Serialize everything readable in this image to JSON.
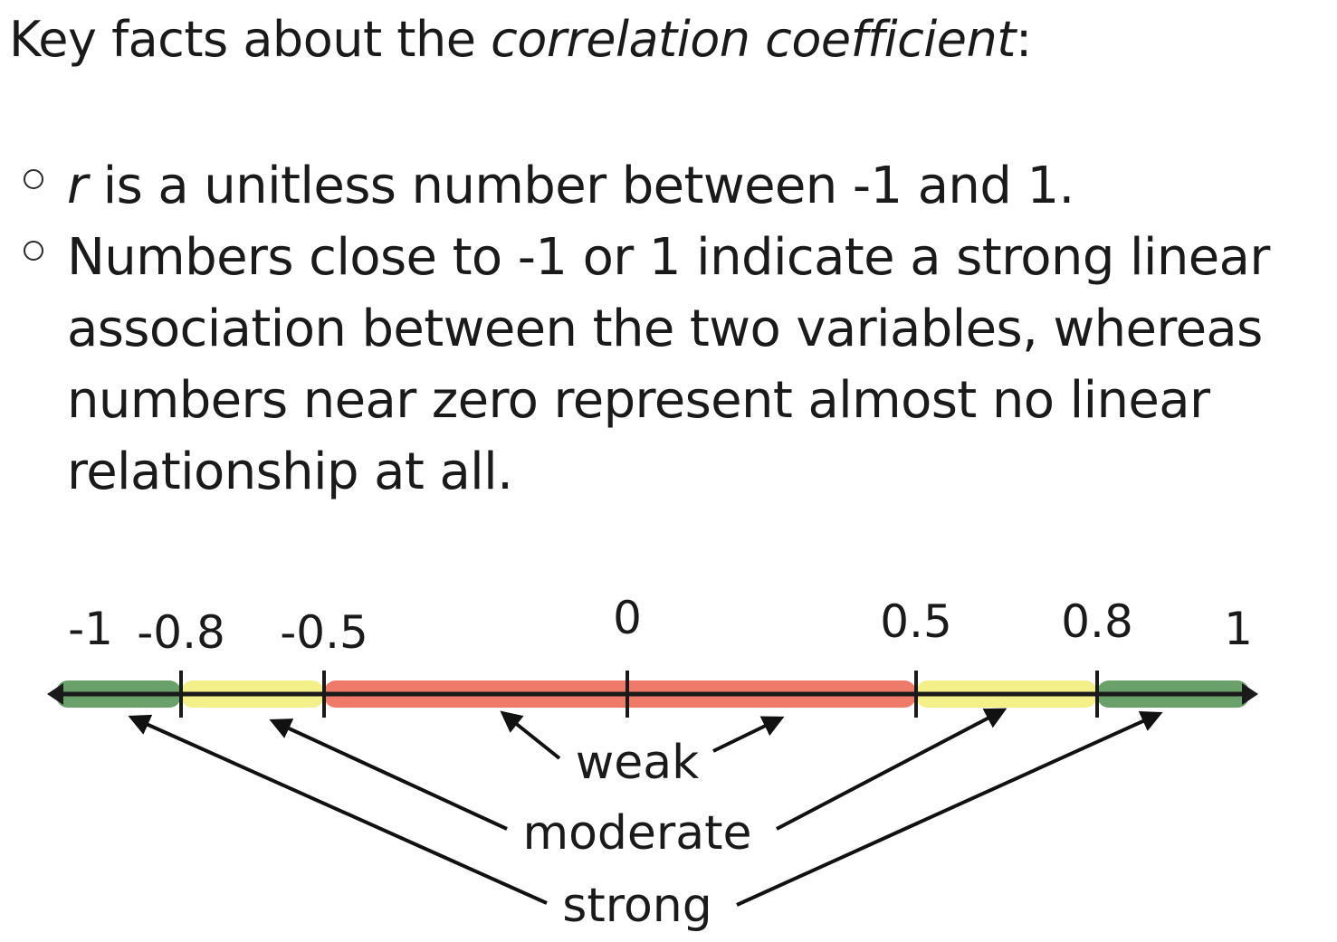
{
  "heading": {
    "prefix": "Key facts about the ",
    "emphasis": "correlation coefficient",
    "suffix": ":"
  },
  "bullets": [
    {
      "variable": "r",
      "text": " is a unitless number between -1 and 1."
    },
    {
      "variable": "",
      "text": "Numbers close to -1 or 1 indicate a strong linear association between the two variables, whereas numbers near zero represent almost no linear relationship at all."
    }
  ],
  "scale": {
    "range": [
      -1,
      1
    ],
    "ticks": [
      {
        "value": -1,
        "label": "-1"
      },
      {
        "value": -0.8,
        "label": "-0.8"
      },
      {
        "value": -0.5,
        "label": "-0.5"
      },
      {
        "value": 0,
        "label": "0"
      },
      {
        "value": 0.5,
        "label": "0.5"
      },
      {
        "value": 0.8,
        "label": "0.8"
      },
      {
        "value": 1,
        "label": "1"
      }
    ],
    "segments": [
      {
        "from": -1,
        "to": -0.8,
        "strength": "strong",
        "color": "#6aa06a"
      },
      {
        "from": -0.8,
        "to": -0.5,
        "strength": "moderate",
        "color": "#f3f08a"
      },
      {
        "from": -0.5,
        "to": 0.5,
        "strength": "weak",
        "color": "#ef7a6a"
      },
      {
        "from": 0.5,
        "to": 0.8,
        "strength": "moderate",
        "color": "#f3f08a"
      },
      {
        "from": 0.8,
        "to": 1,
        "strength": "strong",
        "color": "#6aa06a"
      }
    ],
    "labels": {
      "weak": "weak",
      "moderate": "moderate",
      "strong": "strong"
    }
  }
}
